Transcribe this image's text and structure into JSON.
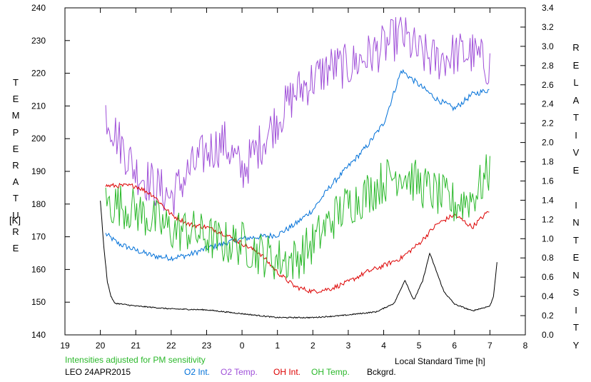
{
  "chart_data": {
    "type": "line",
    "xlabel": "Local Standard Time [h]",
    "x_tick_labels": [
      "19",
      "20",
      "21",
      "22",
      "23",
      "0",
      "1",
      "2",
      "3",
      "4",
      "5",
      "6",
      "7",
      "8"
    ],
    "xlim": [
      19,
      32
    ],
    "ylabel_left": "TEMPERATURE",
    "ylabel_left_unit": "[K]",
    "ylim_left": [
      140,
      240
    ],
    "y_left_ticks": [
      140,
      150,
      160,
      170,
      180,
      190,
      200,
      210,
      220,
      230,
      240
    ],
    "ylabel_right": "RELATIVE INTENSITY",
    "ylim_right": [
      0,
      3.4
    ],
    "y_right_ticks": [
      "0.0",
      "0.2",
      "0.4",
      "0.6",
      "0.8",
      "1.0",
      "1.2",
      "1.4",
      "1.6",
      "1.8",
      "2.0",
      "2.2",
      "2.4",
      "2.6",
      "2.8",
      "3.0",
      "3.2",
      "3.4"
    ],
    "note": "Intensities adjusted for PM sensitivity",
    "station_date": "LEO 24APR2015",
    "grid": false,
    "legend_position": "bottom",
    "series": [
      {
        "name": "O2 Int.",
        "color": "#0070d8",
        "axis": "right",
        "x": [
          20.15,
          20.5,
          21.0,
          21.5,
          22.0,
          22.5,
          23.0,
          23.5,
          24.0,
          24.5,
          25.0,
          25.5,
          26.0,
          26.5,
          27.0,
          27.5,
          28.0,
          28.5,
          29.0,
          29.5,
          30.0,
          30.5,
          31.0
        ],
        "y": [
          1.05,
          0.95,
          0.88,
          0.82,
          0.8,
          0.83,
          0.9,
          0.95,
          1.0,
          1.02,
          1.04,
          1.15,
          1.3,
          1.55,
          1.75,
          1.95,
          2.2,
          2.75,
          2.6,
          2.45,
          2.35,
          2.5,
          2.55
        ]
      },
      {
        "name": "O2 Temp.",
        "color": "#9f4fd8",
        "axis": "left",
        "x": [
          20.15,
          20.5,
          21.0,
          21.5,
          22.0,
          22.5,
          23.0,
          23.5,
          24.0,
          24.5,
          25.0,
          25.5,
          26.0,
          26.5,
          27.0,
          27.5,
          28.0,
          28.5,
          29.0,
          29.5,
          30.0,
          30.5,
          31.0
        ],
        "y": [
          208,
          200,
          190,
          186,
          182,
          190,
          196,
          199,
          190,
          198,
          206,
          214,
          218,
          222,
          222,
          225,
          228,
          232,
          226,
          224,
          226,
          226,
          222
        ]
      },
      {
        "name": "OH Int.",
        "color": "#dd0000",
        "axis": "right",
        "x": [
          20.15,
          20.5,
          21.0,
          21.5,
          22.0,
          22.5,
          23.0,
          23.5,
          24.0,
          24.5,
          25.0,
          25.5,
          26.0,
          26.5,
          27.0,
          27.5,
          28.0,
          28.5,
          29.0,
          29.5,
          30.0,
          30.5,
          31.0
        ],
        "y": [
          1.55,
          1.55,
          1.55,
          1.45,
          1.25,
          1.15,
          1.12,
          1.05,
          0.95,
          0.85,
          0.65,
          0.5,
          0.45,
          0.48,
          0.55,
          0.65,
          0.72,
          0.8,
          0.95,
          1.15,
          1.25,
          1.12,
          1.3
        ]
      },
      {
        "name": "OH Temp.",
        "color": "#2ab82a",
        "axis": "left",
        "x": [
          20.15,
          20.5,
          21.0,
          21.5,
          22.0,
          22.5,
          23.0,
          23.5,
          24.0,
          24.5,
          25.0,
          25.5,
          26.0,
          26.5,
          27.0,
          27.5,
          28.0,
          28.5,
          29.0,
          29.5,
          30.0,
          30.5,
          31.0
        ],
        "y": [
          180,
          180,
          178,
          175,
          172,
          172,
          170,
          168,
          168,
          165,
          163,
          163,
          168,
          175,
          180,
          183,
          187,
          190,
          186,
          183,
          180,
          182,
          190
        ]
      },
      {
        "name": "Bckgrd.",
        "color": "#000000",
        "axis": "right",
        "x": [
          20.0,
          20.1,
          20.2,
          20.3,
          20.4,
          20.6,
          21.0,
          22.0,
          23.0,
          24.0,
          25.0,
          26.0,
          26.8,
          27.3,
          27.8,
          28.3,
          28.6,
          28.85,
          29.1,
          29.3,
          29.5,
          29.7,
          30.0,
          30.5,
          31.0,
          31.1,
          31.2
        ],
        "y": [
          1.4,
          0.9,
          0.55,
          0.4,
          0.33,
          0.32,
          0.3,
          0.27,
          0.26,
          0.22,
          0.18,
          0.18,
          0.2,
          0.22,
          0.24,
          0.33,
          0.57,
          0.36,
          0.56,
          0.85,
          0.65,
          0.45,
          0.32,
          0.25,
          0.3,
          0.4,
          0.75
        ]
      }
    ]
  }
}
